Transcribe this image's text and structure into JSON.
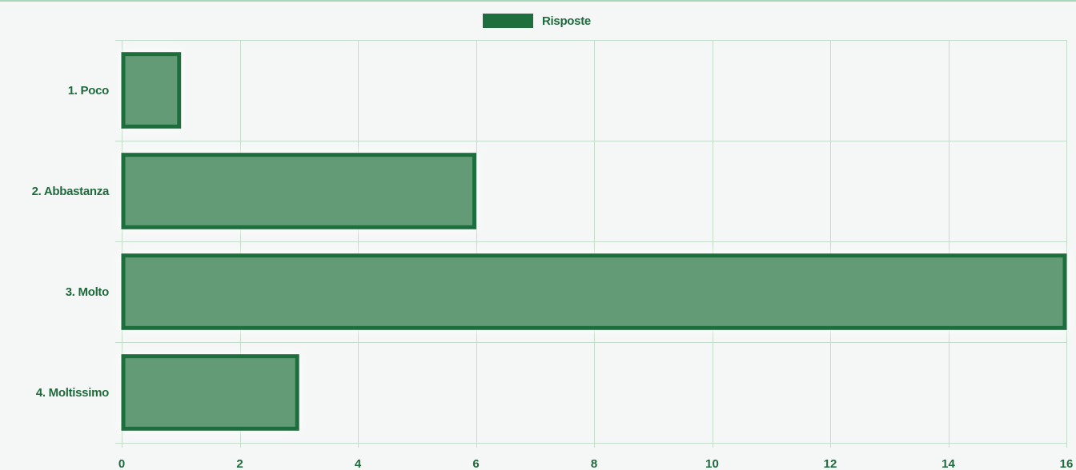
{
  "chart_data": {
    "type": "bar",
    "orientation": "horizontal",
    "categories": [
      "1.  Poco",
      "2. Abbastanza",
      "3. Molto",
      "4. Moltissimo"
    ],
    "series": [
      {
        "name": "Risposte",
        "values": [
          1,
          6,
          16,
          3
        ]
      }
    ],
    "xlim": [
      0,
      16
    ],
    "x_ticks": [
      0,
      2,
      4,
      6,
      8,
      10,
      12,
      14,
      16
    ],
    "x_tick_labels": [
      "0",
      "2",
      "4",
      "6",
      "8",
      "10",
      "12",
      "14",
      "16"
    ],
    "title": "",
    "xlabel": "",
    "ylabel": "",
    "grid": true,
    "legend_position": "top-center",
    "colors": {
      "bar_fill": "#629b74",
      "bar_border": "#1f6e3d",
      "legend_swatch": "#1f6e3d",
      "text": "#1f6a3c",
      "grid": "#c4dccb"
    }
  }
}
